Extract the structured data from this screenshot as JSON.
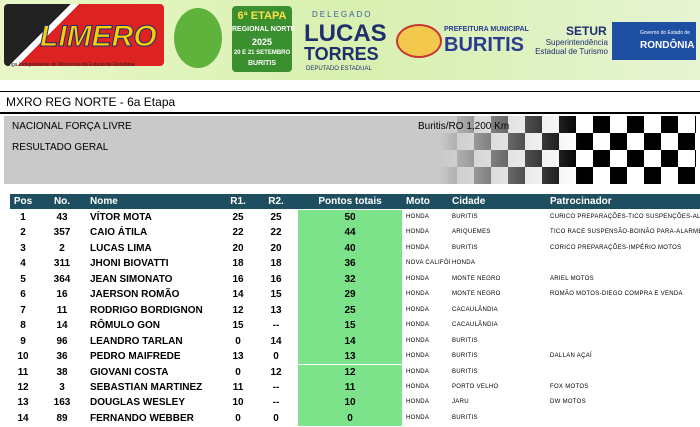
{
  "banner": {
    "limero": {
      "name": "LIMERO",
      "subtitle": "Liga Independente de Motocross do Estado de Rondônia"
    },
    "event": {
      "stage": "6ª ETAPA",
      "region": "REGIONAL NORTE",
      "year": "2025",
      "dates": "20 E 21 SETEMBRO",
      "city": "BURITIS"
    },
    "deputy": {
      "role": "DELEGADO",
      "first": "LUCAS",
      "last": "TORRES",
      "office": "DEPUTADO ESTADUAL"
    },
    "prefeitura": {
      "top": "PREFEITURA MUNICIPAL",
      "city": "BURITIS"
    },
    "setur": {
      "name": "SETUR",
      "desc": "Superintendência Estadual de Turismo"
    },
    "gov": {
      "top": "Governo do Estado de",
      "state": "RONDÔNIA"
    }
  },
  "header": {
    "title": "MXRO REG NORTE - 6a Etapa",
    "category": "NACIONAL FORÇA LIVRE",
    "location": "Buritis/RO 1,200 Km",
    "subtitle": "RESULTADO GERAL"
  },
  "table": {
    "columns": [
      "Pos",
      "No.",
      "Nome",
      "R1.",
      "R2.",
      "Pontos totais",
      "Moto",
      "Cidade",
      "Patrocinador"
    ],
    "rows": [
      [
        1,
        43,
        "VÍTOR MOTA",
        25,
        25,
        50,
        "HONDA",
        "BURITIS",
        "CURICO PREPARAÇÕES-TICO SUSPENÇÕES-ALFA MO"
      ],
      [
        2,
        357,
        "CAIO ÁTILA",
        22,
        22,
        44,
        "HONDA",
        "ARIQUEMES",
        "TICO RACE SUSPENSÃO-BOINÃO PARA-ALARME E C"
      ],
      [
        3,
        2,
        "LUCAS LIMA",
        20,
        20,
        40,
        "HONDA",
        "BURITIS",
        "CORICO PREPARAÇÕES-IMPÉRIO MOTOS"
      ],
      [
        4,
        311,
        "JHONI BIOVATTI",
        18,
        18,
        36,
        "NOVA CALIFÓR",
        "HONDA",
        null
      ],
      [
        5,
        364,
        "JEAN SIMONATO",
        16,
        16,
        32,
        "HONDA",
        "MONTE NEGRO",
        "ARIEL MOTOS"
      ],
      [
        6,
        16,
        "JAERSON ROMÃO",
        14,
        15,
        29,
        "HONDA",
        "MONTE NEGRO",
        "ROMÃO MOTOS-DIEGO COMPRA E VENDA"
      ],
      [
        7,
        11,
        "RODRIGO BORDIGNON",
        12,
        13,
        25,
        "HONDA",
        "CACAULÂNDIA",
        null
      ],
      [
        8,
        14,
        "RÔMULO GON",
        15,
        "--",
        15,
        "HONDA",
        "CACAULÂNDIA",
        null
      ],
      [
        9,
        96,
        "LEANDRO TARLAN",
        0,
        14,
        14,
        "HONDA",
        "BURITIS",
        null
      ],
      [
        10,
        36,
        "PEDRO MAIFREDE",
        13,
        0,
        13,
        "HONDA",
        "BURITIS",
        "DALLAN AÇAÍ"
      ],
      [
        11,
        38,
        "GIOVANI COSTA",
        0,
        12,
        12,
        "HONDA",
        "BURITIS",
        null
      ],
      [
        12,
        3,
        "SEBASTIAN MARTINEZ",
        11,
        "--",
        11,
        "HONDA",
        "PORTO VELHO",
        "FOX MOTOS"
      ],
      [
        13,
        163,
        "DOUGLAS WESLEY",
        10,
        "--",
        10,
        "HONDA",
        "JARU",
        "DW MOTOS"
      ],
      [
        14,
        89,
        "FERNANDO WEBBER",
        0,
        0,
        0,
        "HONDA",
        "BURITIS",
        null
      ]
    ]
  }
}
